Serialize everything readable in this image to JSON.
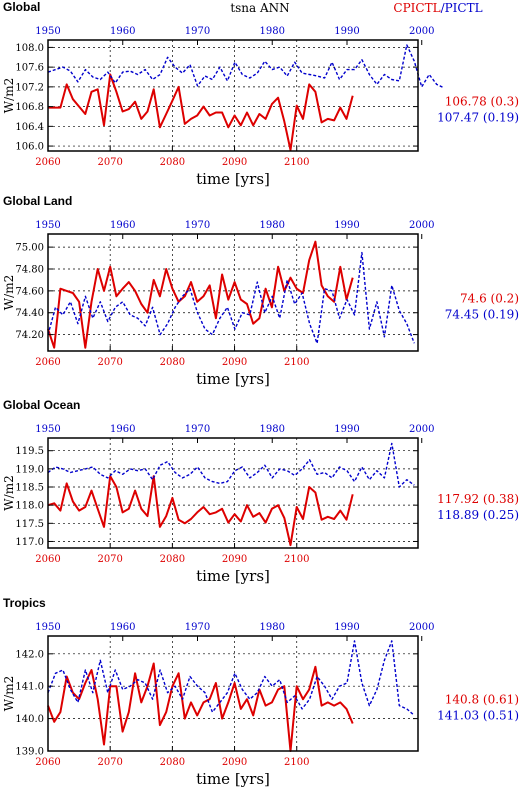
{
  "header": {
    "variable_title": "tsna ANN",
    "experiment_title": "CPICTL/PICTL",
    "experiment_color": "#dd0000",
    "experiment_split_color": "#0000cc"
  },
  "colors": {
    "red": "#dd0000",
    "blue": "#0000cc",
    "grid": "#000000"
  },
  "chart_data": [
    {
      "type": "line",
      "title": "Global",
      "ylabel": "W/m2",
      "xlabel": "time [yrs]",
      "ylim": [
        105.9,
        108.15
      ],
      "yticks": [
        106.0,
        106.4,
        106.8,
        107.2,
        107.6,
        108.0
      ],
      "ytick_labels": [
        "106.0",
        "106.4",
        "106.8",
        "107.2",
        "107.6",
        "108.0"
      ],
      "x_bottom_ticks": [
        "2060",
        "2070",
        "2080",
        "2090",
        "2100"
      ],
      "x_top_ticks": [
        "1950",
        "1960",
        "1970",
        "1980",
        "1990",
        "2000"
      ],
      "stat_red": "106.78 (0.3)",
      "stat_blue": "107.47 (0.19)",
      "series": [
        {
          "color": "red",
          "style": "solid",
          "x_start": 2060,
          "values": [
            106.78,
            106.78,
            106.78,
            107.25,
            106.95,
            106.8,
            106.65,
            107.1,
            107.15,
            106.42,
            107.45,
            107.1,
            106.7,
            106.75,
            106.9,
            106.55,
            106.7,
            107.15,
            106.38,
            106.65,
            106.92,
            107.2,
            106.45,
            106.55,
            106.62,
            106.8,
            106.62,
            106.68,
            106.68,
            106.38,
            106.62,
            106.42,
            106.68,
            106.42,
            106.65,
            106.55,
            106.85,
            106.98,
            106.5,
            105.92,
            106.82,
            106.55,
            107.25,
            107.1,
            106.48,
            106.55,
            106.52,
            106.78,
            106.55,
            107.02
          ]
        },
        {
          "color": "blue",
          "style": "dashed",
          "x_start": 1950,
          "values": [
            107.5,
            107.55,
            107.6,
            107.52,
            107.3,
            107.55,
            107.4,
            107.35,
            107.5,
            107.28,
            107.5,
            107.52,
            107.45,
            107.55,
            107.35,
            107.45,
            107.8,
            107.6,
            107.48,
            107.65,
            107.22,
            107.42,
            107.35,
            107.6,
            107.32,
            107.7,
            107.45,
            107.38,
            107.48,
            107.72,
            107.55,
            107.6,
            107.42,
            107.7,
            107.48,
            107.45,
            107.42,
            107.38,
            107.7,
            107.35,
            107.55,
            107.55,
            107.75,
            107.45,
            107.25,
            107.45,
            107.35,
            107.32,
            108.05,
            107.72,
            107.2,
            107.45,
            107.25,
            107.18
          ]
        }
      ]
    },
    {
      "type": "line",
      "title": "Global Land",
      "ylabel": "W/m2",
      "xlabel": "time [yrs]",
      "ylim": [
        74.05,
        75.12
      ],
      "yticks": [
        74.2,
        74.4,
        74.6,
        74.8,
        75.0
      ],
      "ytick_labels": [
        "74.20",
        "74.40",
        "74.60",
        "74.80",
        "75.00"
      ],
      "x_bottom_ticks": [
        "2060",
        "2070",
        "2080",
        "2090",
        "2100"
      ],
      "x_top_ticks": [
        "1950",
        "1960",
        "1970",
        "1980",
        "1990",
        "2000"
      ],
      "stat_red": "74.6 (0.2)",
      "stat_blue": "74.45 (0.19)",
      "series": [
        {
          "color": "red",
          "style": "solid",
          "x_start": 2060,
          "values": [
            74.25,
            74.08,
            74.62,
            74.6,
            74.58,
            74.5,
            74.08,
            74.5,
            74.8,
            74.6,
            74.82,
            74.55,
            74.62,
            74.68,
            74.6,
            74.48,
            74.4,
            74.7,
            74.55,
            74.8,
            74.62,
            74.5,
            74.55,
            74.68,
            74.5,
            74.55,
            74.65,
            74.35,
            74.75,
            74.52,
            74.68,
            74.52,
            74.48,
            74.3,
            74.35,
            74.62,
            74.45,
            74.82,
            74.6,
            74.72,
            74.62,
            74.58,
            74.88,
            75.05,
            74.65,
            74.55,
            74.5,
            74.82,
            74.52,
            74.72
          ]
        },
        {
          "color": "blue",
          "style": "dashed",
          "x_start": 1950,
          "values": [
            74.2,
            74.45,
            74.38,
            74.5,
            74.3,
            74.55,
            74.35,
            74.5,
            74.32,
            74.45,
            74.5,
            74.38,
            74.35,
            74.28,
            74.45,
            74.2,
            74.3,
            74.45,
            74.55,
            74.62,
            74.4,
            74.25,
            74.2,
            74.35,
            74.45,
            74.25,
            74.4,
            74.38,
            74.68,
            74.4,
            74.55,
            74.35,
            74.7,
            74.48,
            74.58,
            74.3,
            74.12,
            74.62,
            74.6,
            74.35,
            74.52,
            74.38,
            74.95,
            74.25,
            74.5,
            74.18,
            74.65,
            74.42,
            74.3,
            74.12
          ]
        }
      ]
    },
    {
      "type": "line",
      "title": "Global Ocean",
      "ylabel": "W/m2",
      "xlabel": "time [yrs]",
      "ylim": [
        116.82,
        119.85
      ],
      "yticks": [
        117.0,
        117.5,
        118.0,
        118.5,
        119.0,
        119.5
      ],
      "ytick_labels": [
        "117.0",
        "117.5",
        "118.0",
        "118.5",
        "119.0",
        "119.5"
      ],
      "x_bottom_ticks": [
        "2060",
        "2070",
        "2080",
        "2090",
        "2100"
      ],
      "x_top_ticks": [
        "1950",
        "1960",
        "1970",
        "1980",
        "1990",
        "2000"
      ],
      "stat_red": "117.92 (0.38)",
      "stat_blue": "118.89 (0.25)",
      "series": [
        {
          "color": "red",
          "style": "solid",
          "x_start": 2060,
          "values": [
            118.0,
            118.05,
            117.85,
            118.6,
            118.1,
            117.85,
            117.95,
            118.4,
            117.9,
            117.4,
            118.8,
            118.5,
            117.8,
            117.9,
            118.4,
            117.9,
            117.7,
            118.8,
            117.4,
            117.7,
            118.2,
            117.6,
            117.5,
            117.62,
            117.8,
            117.95,
            117.75,
            117.8,
            117.9,
            117.52,
            117.75,
            117.55,
            118.0,
            117.68,
            117.78,
            117.52,
            117.9,
            118.0,
            117.65,
            116.9,
            117.95,
            117.62,
            118.5,
            118.35,
            117.6,
            117.68,
            117.62,
            117.85,
            117.6,
            118.3
          ]
        },
        {
          "color": "blue",
          "style": "dashed",
          "x_start": 1950,
          "values": [
            118.9,
            119.05,
            119.0,
            118.9,
            118.95,
            119.0,
            119.05,
            118.85,
            118.75,
            118.95,
            118.85,
            119.0,
            118.95,
            119.0,
            118.7,
            119.1,
            119.2,
            118.9,
            118.75,
            118.85,
            119.05,
            118.75,
            118.65,
            118.6,
            118.65,
            118.95,
            119.05,
            118.75,
            118.9,
            119.1,
            118.75,
            119.0,
            118.95,
            118.82,
            119.0,
            119.25,
            118.85,
            118.9,
            118.75,
            119.05,
            118.95,
            118.65,
            119.05,
            118.7,
            118.95,
            118.75,
            119.7,
            118.5,
            118.7,
            118.55
          ]
        }
      ]
    },
    {
      "type": "line",
      "title": "Tropics",
      "ylabel": "W/m2",
      "xlabel": "time [yrs]",
      "ylim": [
        139.0,
        142.55
      ],
      "yticks": [
        139.0,
        140.0,
        141.0,
        142.0
      ],
      "ytick_labels": [
        "139.0",
        "140.0",
        "141.0",
        "142.0"
      ],
      "x_bottom_ticks": [
        "2060",
        "2070",
        "2080",
        "2090",
        "2100"
      ],
      "x_top_ticks": [
        "1950",
        "1960",
        "1970",
        "1980",
        "1990",
        "2000"
      ],
      "stat_red": "140.8 (0.61)",
      "stat_blue": "141.03 (0.51)",
      "series": [
        {
          "color": "red",
          "style": "solid",
          "x_start": 2060,
          "values": [
            140.4,
            139.9,
            140.2,
            141.3,
            140.8,
            140.6,
            141.1,
            141.5,
            140.6,
            139.2,
            141.0,
            141.0,
            139.6,
            140.2,
            141.4,
            140.5,
            141.0,
            141.7,
            139.8,
            140.2,
            141.0,
            141.4,
            140.0,
            140.5,
            140.1,
            140.5,
            140.6,
            141.1,
            140.0,
            140.5,
            141.1,
            140.3,
            140.6,
            140.1,
            140.9,
            140.4,
            140.5,
            140.9,
            141.0,
            139.0,
            141.0,
            140.6,
            140.9,
            141.6,
            140.4,
            140.5,
            140.4,
            140.5,
            140.3,
            139.85
          ]
        },
        {
          "color": "blue",
          "style": "dashed",
          "x_start": 1950,
          "values": [
            140.8,
            141.4,
            141.5,
            140.9,
            140.5,
            141.5,
            140.8,
            141.8,
            140.8,
            141.5,
            140.9,
            141.0,
            141.2,
            141.1,
            140.6,
            141.5,
            140.8,
            141.0,
            140.6,
            141.3,
            141.0,
            140.8,
            140.2,
            140.5,
            140.8,
            141.4,
            140.9,
            140.6,
            140.8,
            141.3,
            141.0,
            141.2,
            140.5,
            140.7,
            140.3,
            140.6,
            141.3,
            141.0,
            140.6,
            141.0,
            141.1,
            142.4,
            141.1,
            140.4,
            140.9,
            141.8,
            142.4,
            140.4,
            140.3,
            140.1
          ]
        }
      ]
    }
  ]
}
